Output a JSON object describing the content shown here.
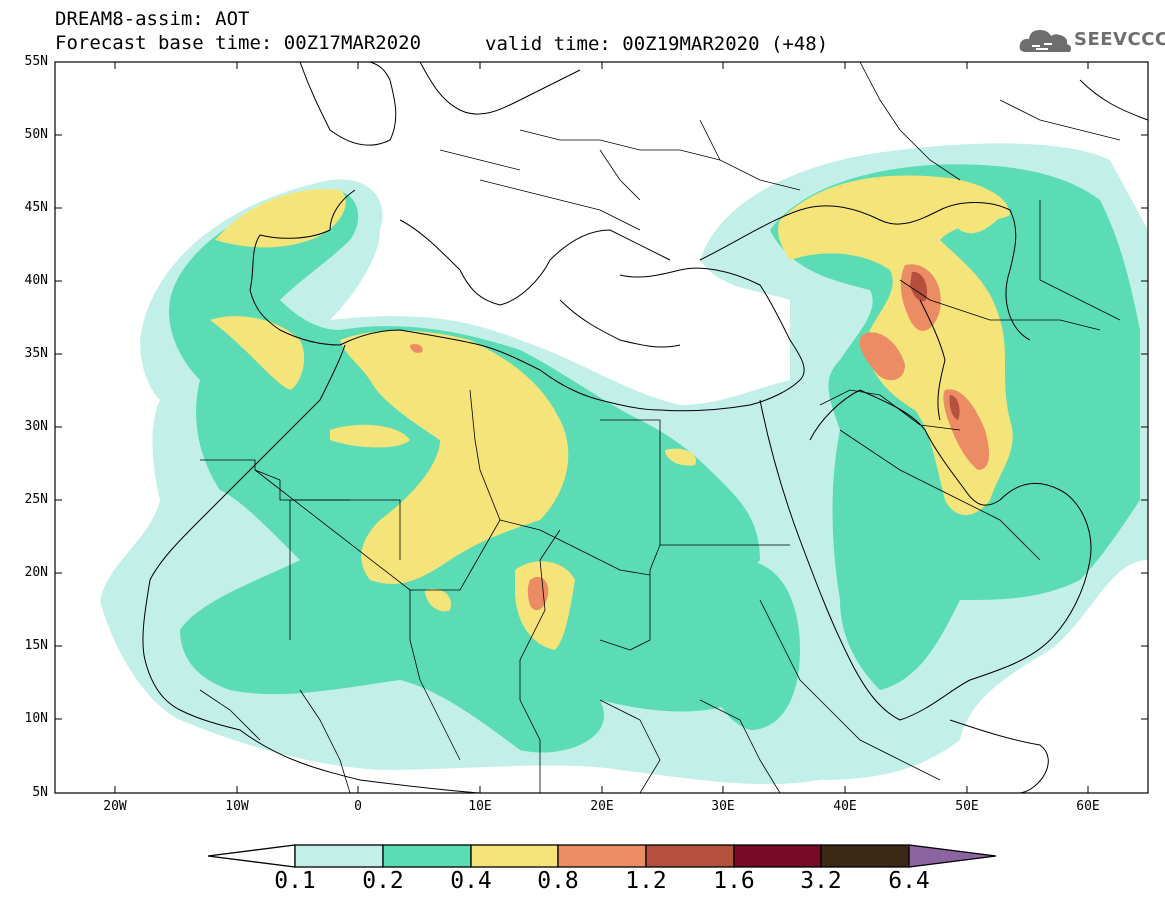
{
  "header": {
    "line1": "DREAM8-assim: AOT",
    "line2": "Forecast base time: 00Z17MAR2020",
    "valid": "valid time: 00Z19MAR2020 (+48)"
  },
  "logo": {
    "text": "SEEVCCC",
    "icon": "cloud-icon"
  },
  "axes": {
    "lat_labels": [
      "55N",
      "50N",
      "45N",
      "40N",
      "35N",
      "30N",
      "25N",
      "20N",
      "15N",
      "10N",
      "5N"
    ],
    "lon_labels": [
      "20W",
      "10W",
      "0",
      "10E",
      "20E",
      "30E",
      "40E",
      "50E",
      "60E"
    ]
  },
  "colorbar": {
    "labels": [
      "0.1",
      "0.2",
      "0.4",
      "0.8",
      "1.2",
      "1.6",
      "3.2",
      "6.4"
    ],
    "colors": [
      "#c2f0e8",
      "#5cdcb4",
      "#f5e47a",
      "#eb8c64",
      "#b4503c",
      "#780a28",
      "#3c2814",
      "#8c64a0"
    ]
  },
  "palette": {
    "c1": "#c2f0e8",
    "c2": "#5cdcb4",
    "c3": "#f5e47a",
    "c4": "#eb8c64",
    "c5": "#b4503c",
    "c6": "#780a28"
  }
}
